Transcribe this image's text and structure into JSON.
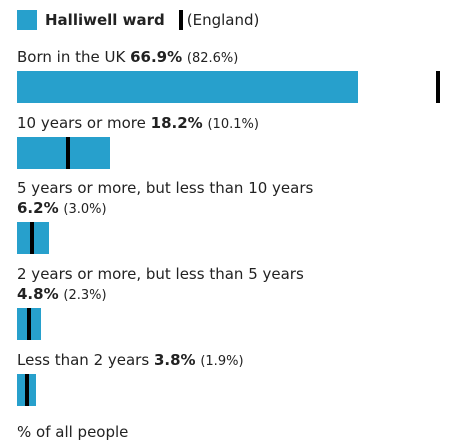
{
  "legend": {
    "ward_label": "Halliwell ward",
    "comparison_label": "(England)"
  },
  "colors": {
    "bar": "#27a0cc",
    "marker": "#000000"
  },
  "chart_data": {
    "type": "bar",
    "orientation": "horizontal",
    "x_max": 66.9,
    "series": [
      {
        "name": "Halliwell ward",
        "values": [
          66.9,
          18.2,
          6.2,
          4.8,
          3.8
        ]
      },
      {
        "name": "(England)",
        "values": [
          82.6,
          10.1,
          3.0,
          2.3,
          1.9
        ]
      }
    ],
    "rows": [
      {
        "label": "Born in the UK",
        "value": 66.9,
        "value_text": "66.9%",
        "england": 82.6,
        "england_text": "(82.6%)"
      },
      {
        "label": "10 years or more",
        "value": 18.2,
        "value_text": "18.2%",
        "england": 10.1,
        "england_text": "(10.1%)"
      },
      {
        "label": "5 years or more, but less than 10 years",
        "value": 6.2,
        "value_text": "6.2%",
        "england": 3.0,
        "england_text": "(3.0%)"
      },
      {
        "label": "2 years or more, but less than 5 years",
        "value": 4.8,
        "value_text": "4.8%",
        "england": 2.3,
        "england_text": "(2.3%)"
      },
      {
        "label": "Less than 2 years",
        "value": 3.8,
        "value_text": "3.8%",
        "england": 1.9,
        "england_text": "(1.9%)"
      }
    ],
    "footer": "% of all people"
  }
}
